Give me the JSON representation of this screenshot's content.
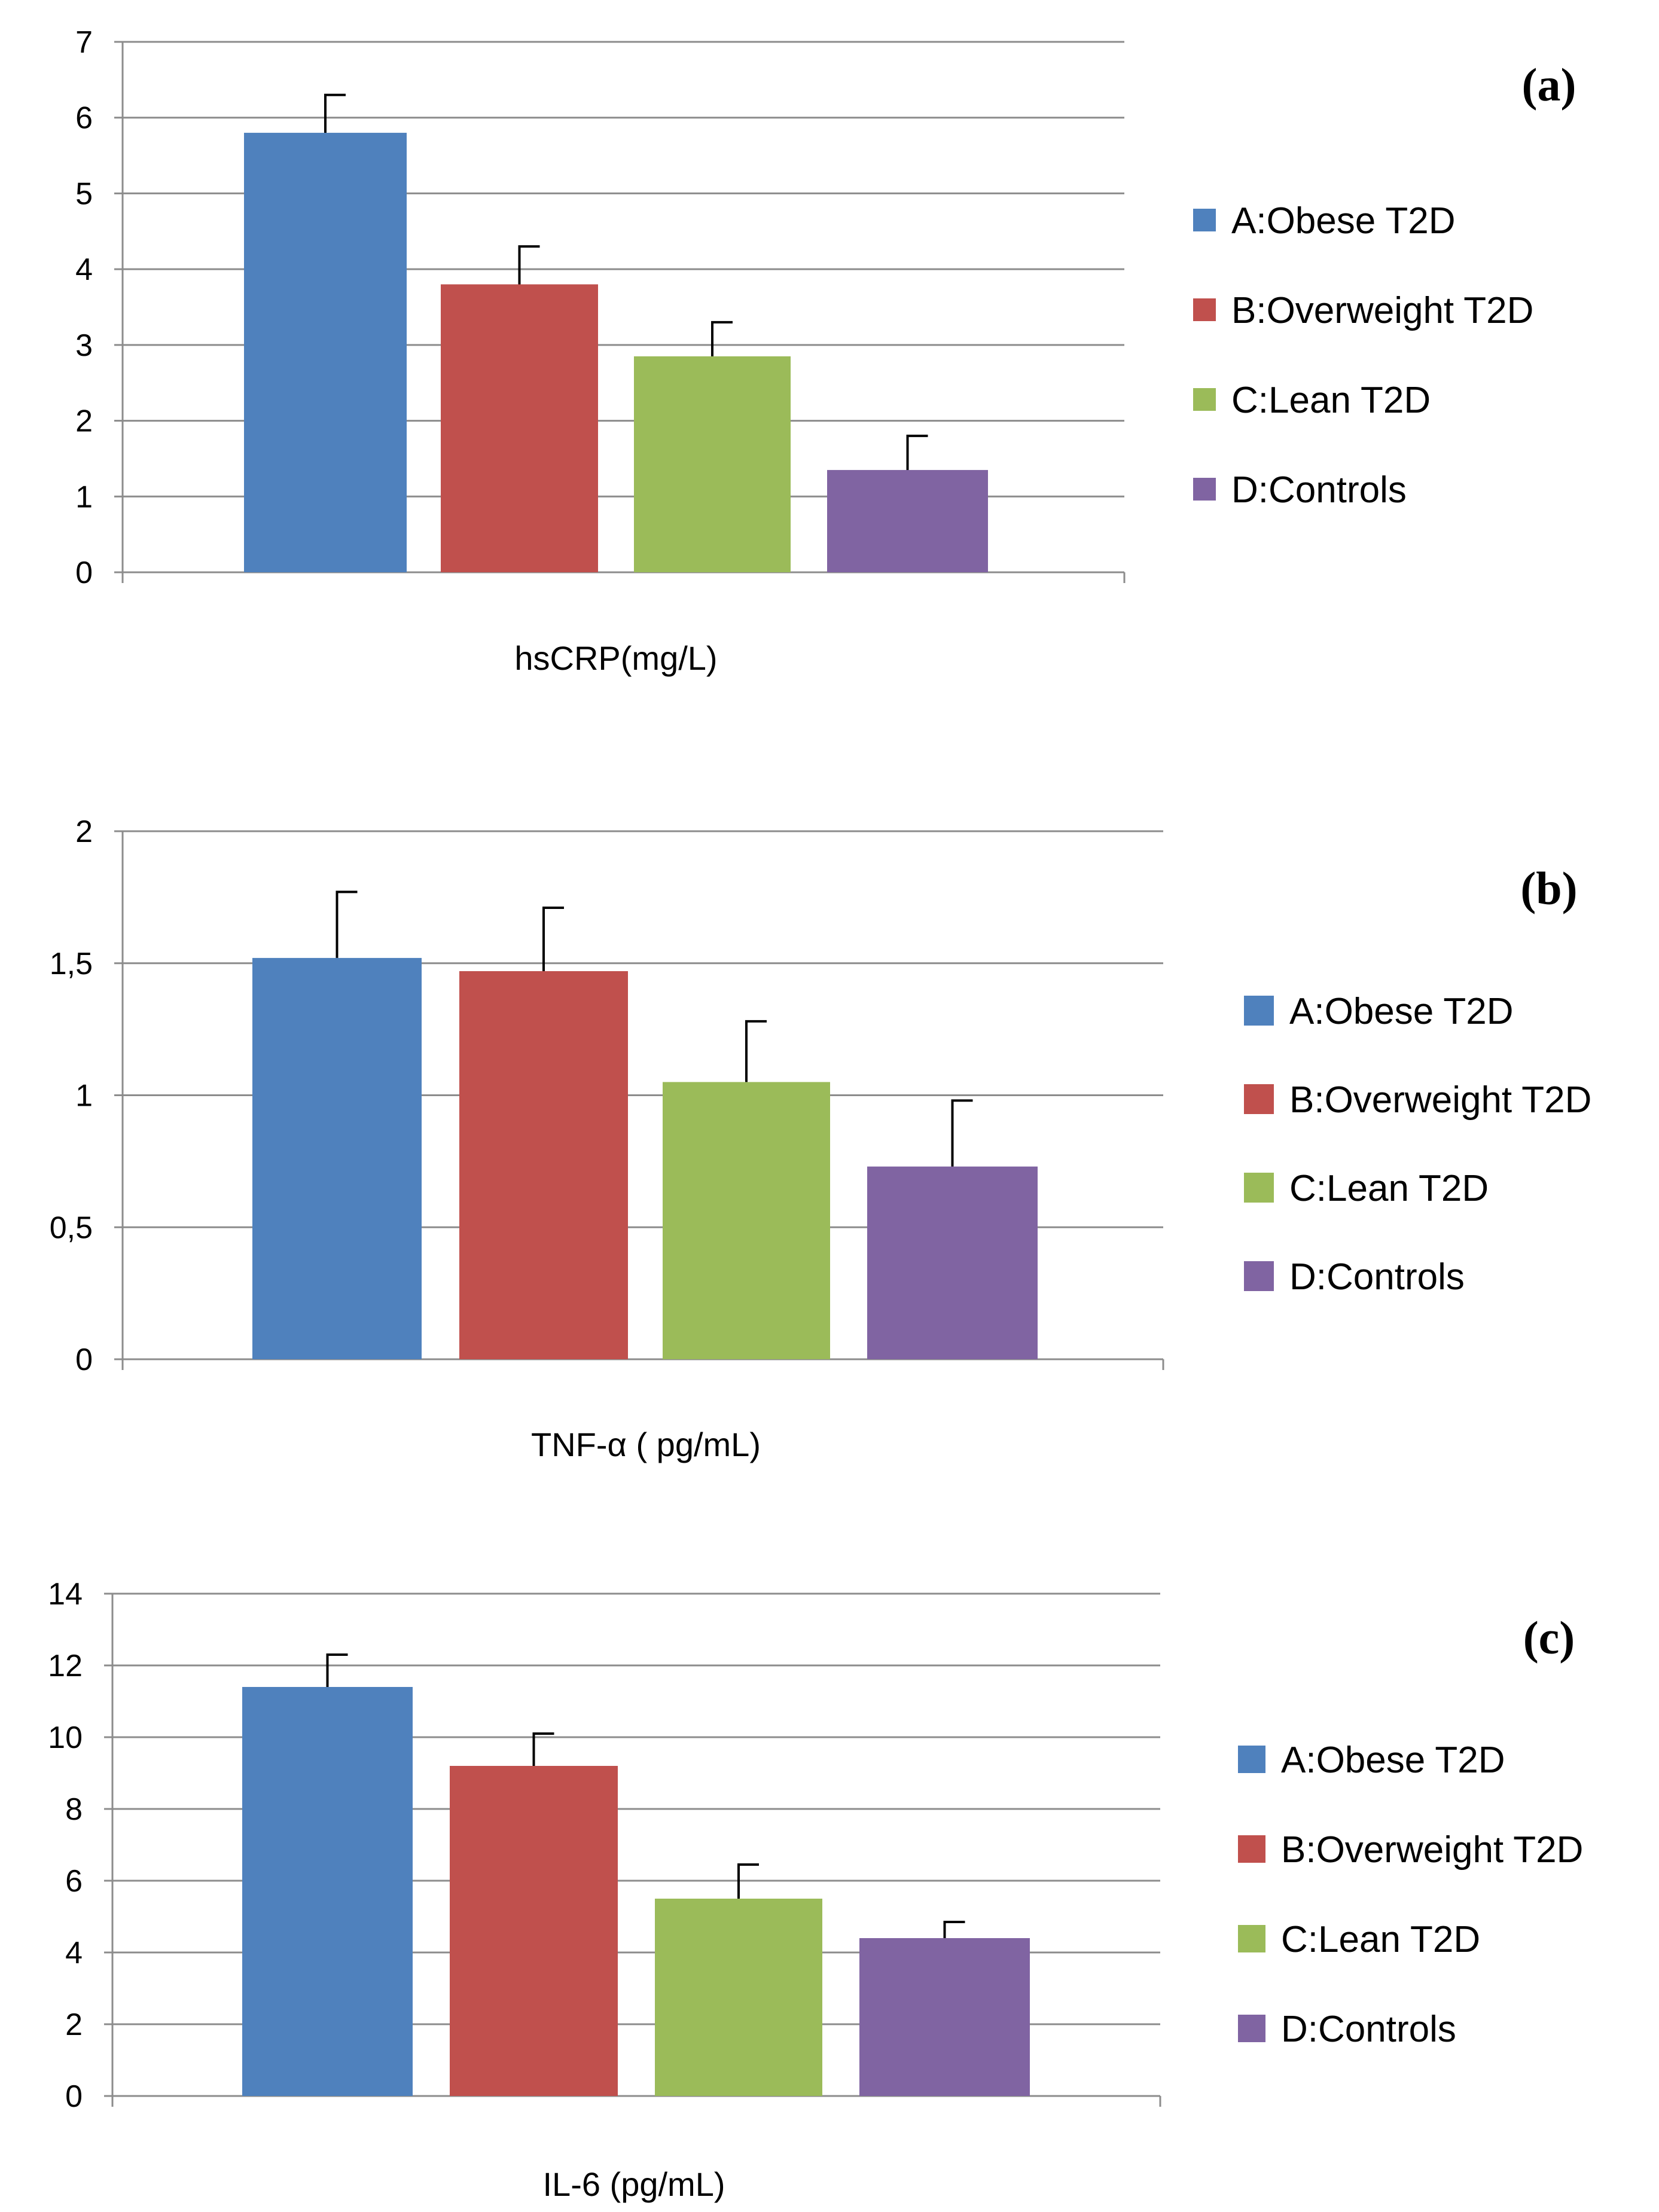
{
  "chart_data": [
    {
      "type": "bar",
      "panel_label": "(a)",
      "xlabel": "hsCRP(mg/L)",
      "ylim": [
        0,
        7
      ],
      "yticks": [
        "0",
        "1",
        "2",
        "3",
        "4",
        "5",
        "6",
        "7"
      ],
      "grid": true,
      "legend_position": "right",
      "series": [
        {
          "name": "A:Obese T2D",
          "value": 5.8,
          "error": 0.5,
          "color": "#4f81bd"
        },
        {
          "name": "B:Overweight T2D",
          "value": 3.8,
          "error": 0.5,
          "color": "#c0504d"
        },
        {
          "name": "C:Lean T2D",
          "value": 2.85,
          "error": 0.45,
          "color": "#9bbb59"
        },
        {
          "name": "D:Controls",
          "value": 1.35,
          "error": 0.45,
          "color": "#8064a2"
        }
      ]
    },
    {
      "type": "bar",
      "panel_label": "(b)",
      "xlabel": "TNF-α ( pg/mL)",
      "ylim": [
        0,
        2
      ],
      "yticks": [
        "0",
        "0,5",
        "1",
        "1,5",
        "2"
      ],
      "grid": true,
      "legend_position": "right",
      "series": [
        {
          "name": "A:Obese T2D",
          "value": 1.52,
          "error": 0.25,
          "color": "#4f81bd"
        },
        {
          "name": "B:Overweight T2D",
          "value": 1.47,
          "error": 0.24,
          "color": "#c0504d"
        },
        {
          "name": "C:Lean T2D",
          "value": 1.05,
          "error": 0.23,
          "color": "#9bbb59"
        },
        {
          "name": "D:Controls",
          "value": 0.73,
          "error": 0.25,
          "color": "#8064a2"
        }
      ]
    },
    {
      "type": "bar",
      "panel_label": "(c)",
      "xlabel": "IL-6 (pg/mL)",
      "ylim": [
        0,
        14
      ],
      "yticks": [
        "0",
        "2",
        "4",
        "6",
        "8",
        "10",
        "12",
        "14"
      ],
      "grid": true,
      "legend_position": "right",
      "series": [
        {
          "name": "A:Obese T2D",
          "value": 11.4,
          "error": 0.9,
          "color": "#4f81bd"
        },
        {
          "name": "B:Overweight T2D",
          "value": 9.2,
          "error": 0.9,
          "color": "#c0504d"
        },
        {
          "name": "C:Lean T2D",
          "value": 5.5,
          "error": 0.95,
          "color": "#9bbb59"
        },
        {
          "name": "D:Controls",
          "value": 4.4,
          "error": 0.45,
          "color": "#8064a2"
        }
      ]
    }
  ]
}
